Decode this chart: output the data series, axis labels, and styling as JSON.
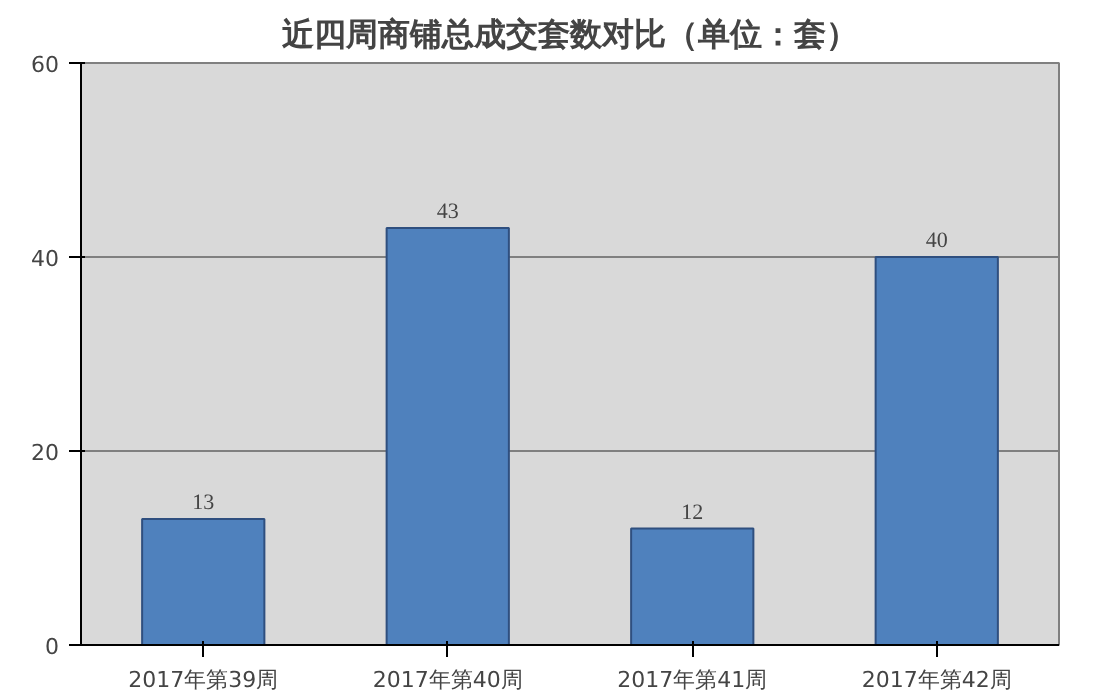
{
  "chart_data": {
    "type": "bar",
    "title": "近四周商铺总成交套数对比（单位：套）",
    "categories": [
      "2017年第39周",
      "2017年第40周",
      "2017年第41周",
      "2017年第42周"
    ],
    "values": [
      13,
      43,
      12,
      40
    ],
    "color": "#4f81bd",
    "ylim": [
      0,
      60
    ],
    "yticks": [
      0,
      20,
      40,
      60
    ],
    "grid": "y",
    "data_labels": true
  }
}
